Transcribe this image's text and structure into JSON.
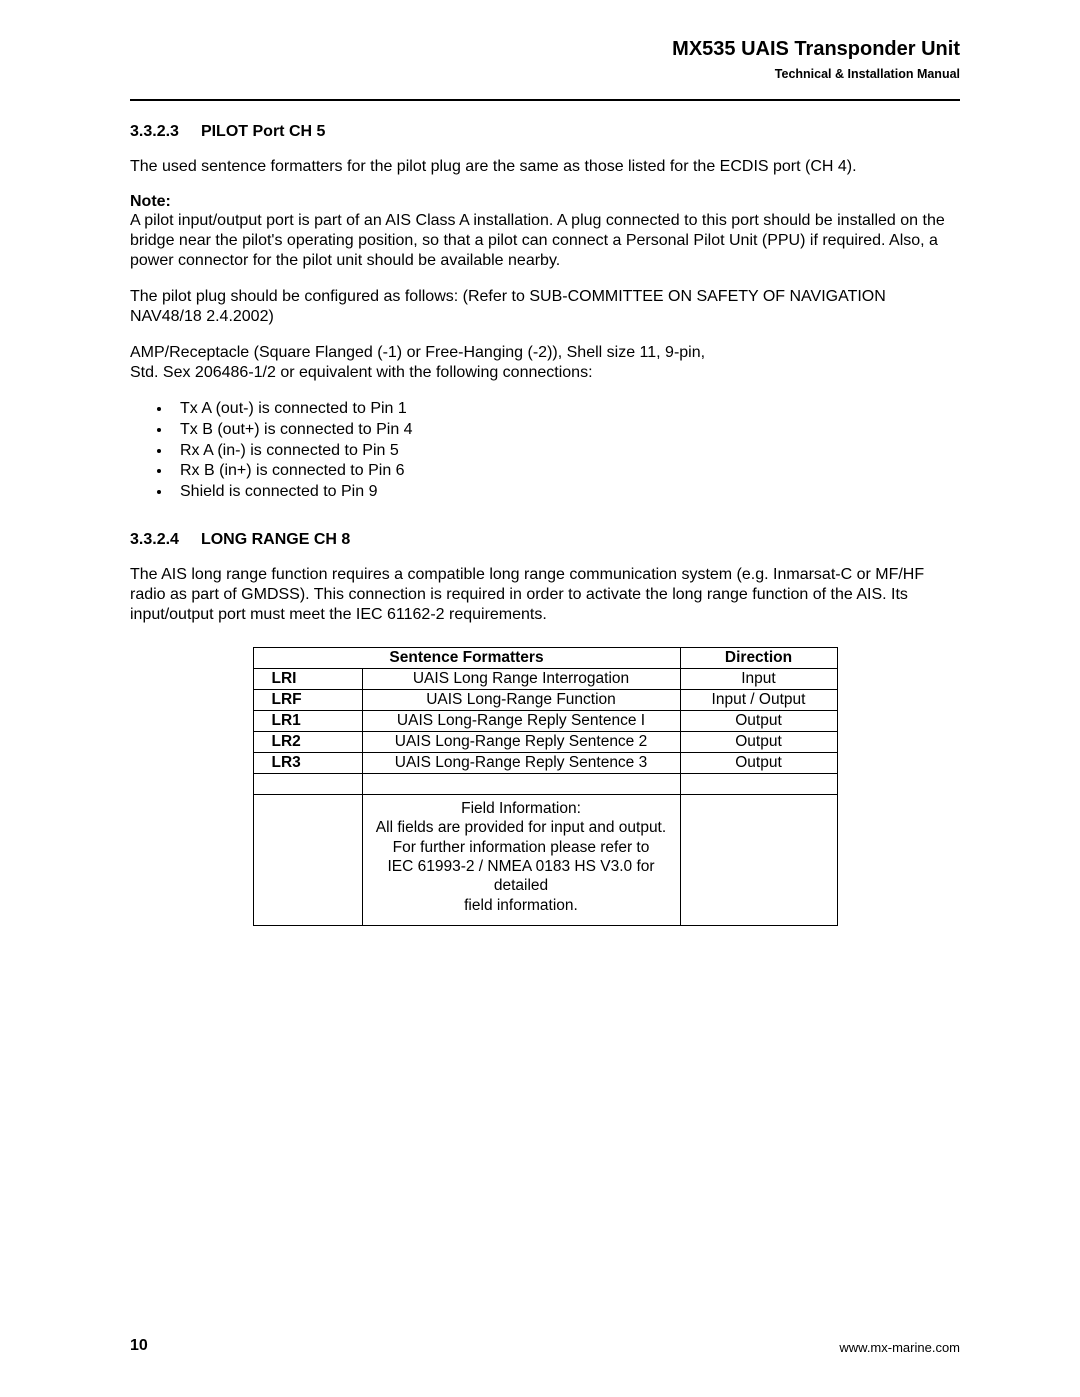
{
  "header": {
    "title": "MX535 UAIS Transponder Unit",
    "subtitle": "Technical & Installation Manual"
  },
  "section1": {
    "number": "3.3.2.3",
    "title": "PILOT Port CH 5",
    "p1": "The used sentence formatters for the pilot plug are the same as those listed for the ECDIS port (CH 4).",
    "note_label": "Note:",
    "note_body": "A pilot input/output port is part of an AIS Class A installation. A plug connected to this port should be installed on the bridge near the pilot's operating position, so that a pilot can connect a Personal Pilot Unit (PPU) if required. Also, a power connector for the pilot unit should be available nearby.",
    "p2": "The pilot plug should be configured as follows: (Refer to SUB-COMMITTEE ON SAFETY OF NAVIGATION NAV48/18 2.4.2002)",
    "p3": "AMP/Receptacle (Square Flanged (-1) or Free-Hanging (-2)), Shell size 11, 9-pin,\nStd. Sex 206486-1/2 or equivalent with the following connections:",
    "bullets": [
      "Tx A (out-) is connected to Pin 1",
      "Tx B (out+) is connected to Pin 4",
      "Rx A (in-) is connected to Pin 5",
      "Rx B (in+) is connected to Pin 6",
      "Shield is connected to Pin 9"
    ]
  },
  "section2": {
    "number": "3.3.2.4",
    "title": "LONG RANGE CH 8",
    "p1": "The AIS long range function requires a compatible long range communication system (e.g. Inmarsat-C or MF/HF radio as part of GMDSS). This connection is required in order to activate the long range function of the AIS. Its input/output port must meet the IEC 61162-2 requirements."
  },
  "table": {
    "head": {
      "c1": "Sentence Formatters",
      "c2": "Direction"
    },
    "rows": [
      {
        "code": "LRI",
        "desc": "UAIS Long Range Interrogation",
        "dir": "Input"
      },
      {
        "code": "LRF",
        "desc": "UAIS Long-Range Function",
        "dir": "Input / Output"
      },
      {
        "code": "LR1",
        "desc": "UAIS Long-Range Reply Sentence I",
        "dir": "Output"
      },
      {
        "code": "LR2",
        "desc": "UAIS Long-Range Reply Sentence 2",
        "dir": "Output"
      },
      {
        "code": "LR3",
        "desc": "UAIS Long-Range Reply Sentence 3",
        "dir": "Output"
      }
    ],
    "info": "Field Information:\nAll fields are provided for input and output.\nFor further information please refer to\nIEC 61993-2 / NMEA 0183 HS V3.0 for detailed\nfield information."
  },
  "footer": {
    "page": "10",
    "url": "www.mx-marine.com"
  }
}
